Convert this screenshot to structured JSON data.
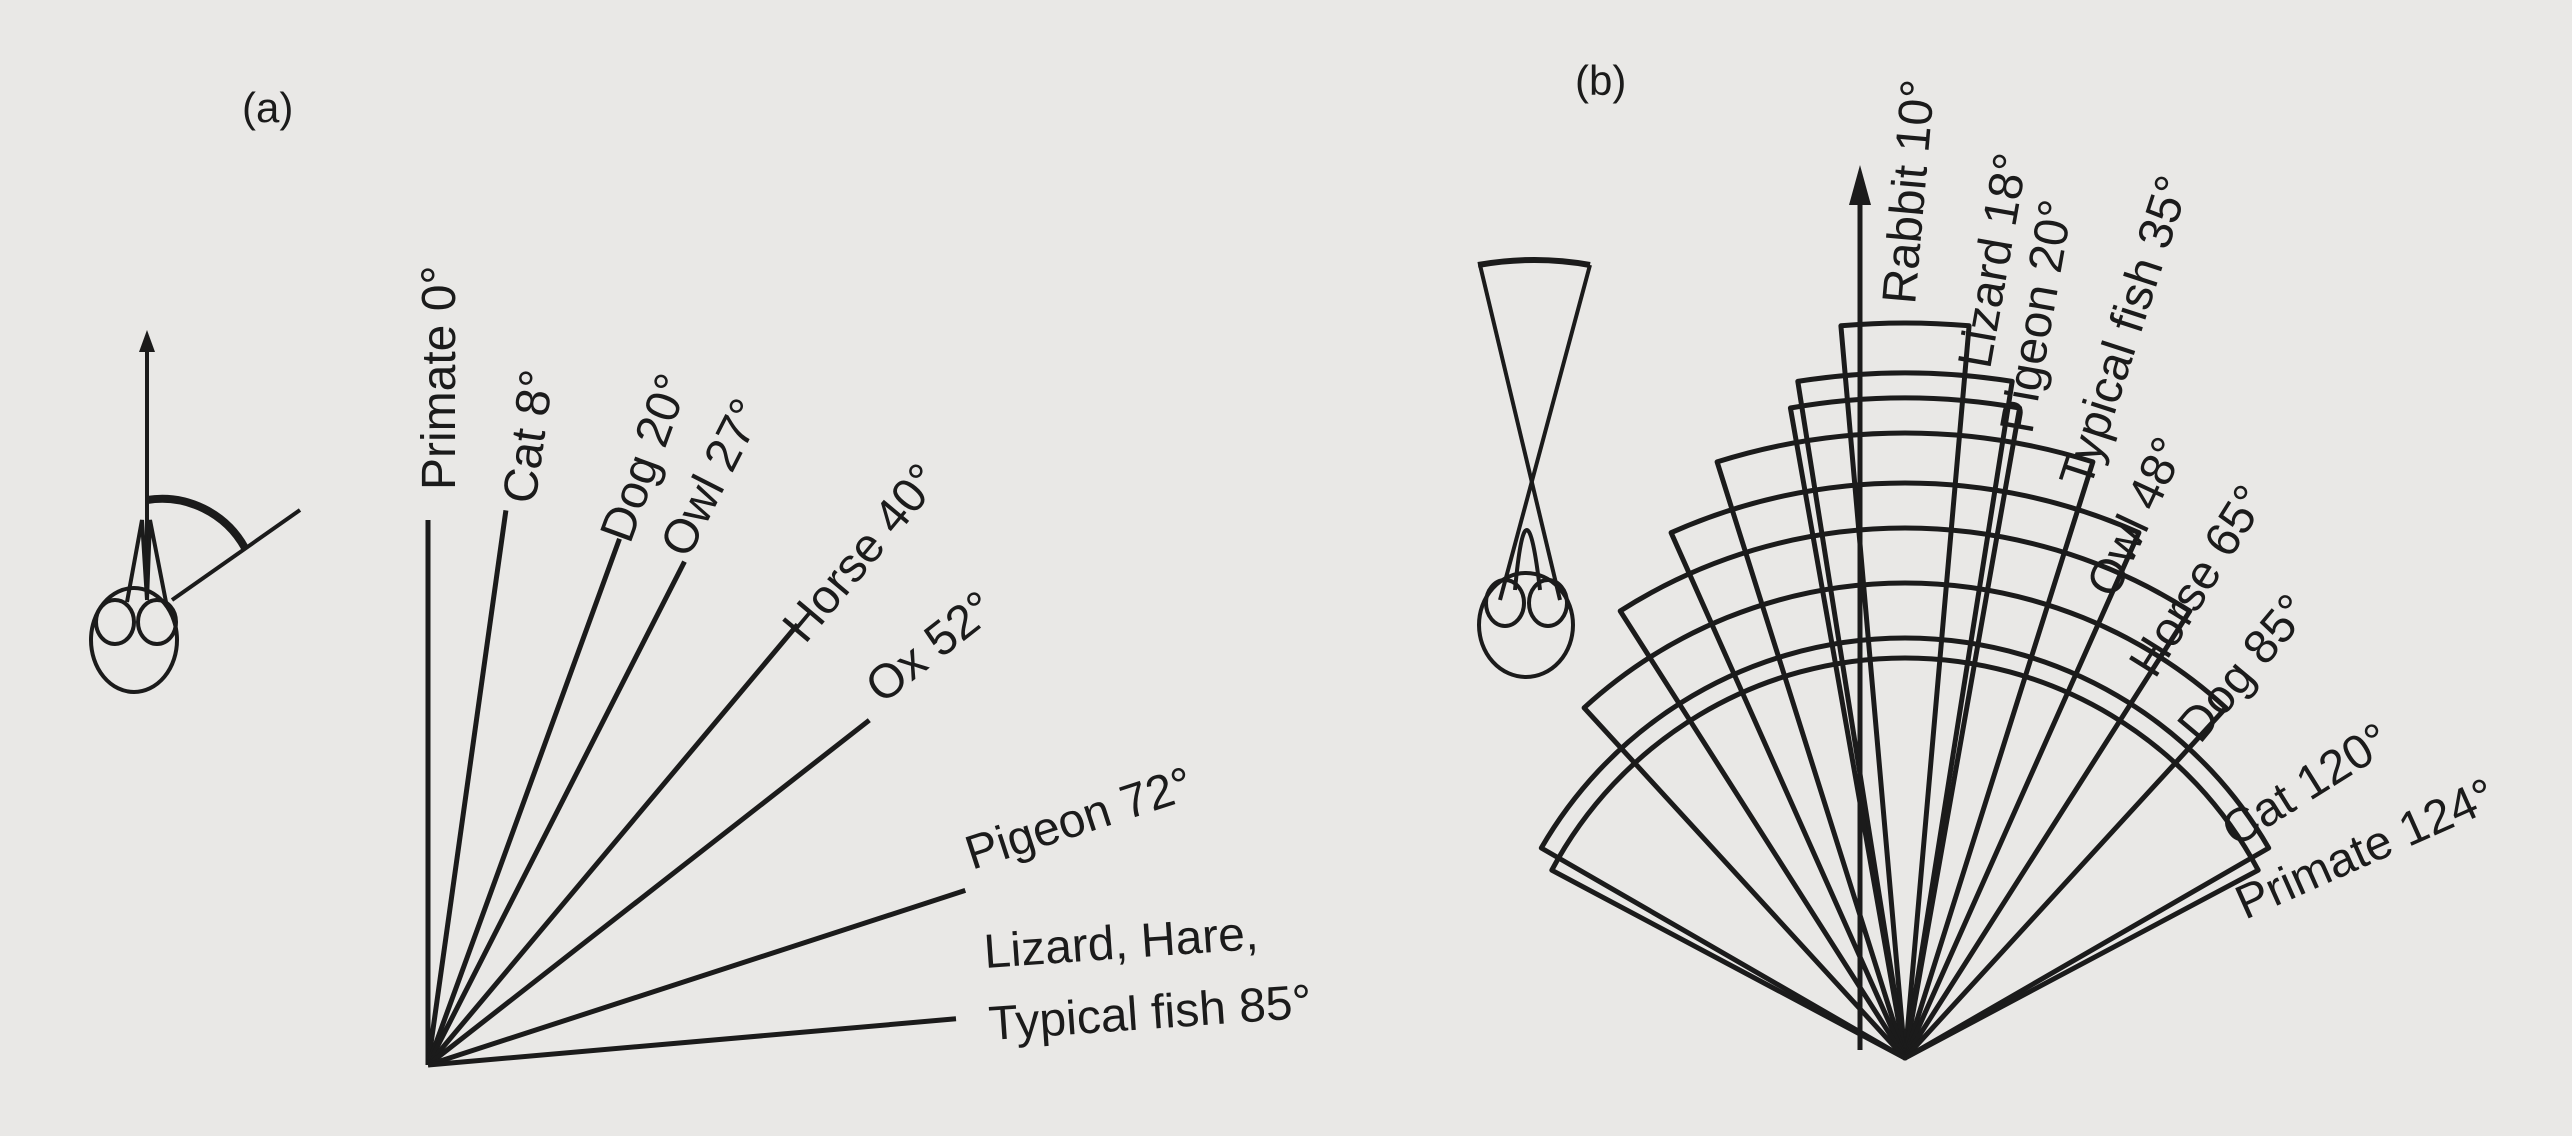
{
  "panel_a": {
    "caption": "(a)",
    "labels": [
      {
        "text": "Primate 0°",
        "angle_deg": 0
      },
      {
        "text": "Cat 8°",
        "angle_deg": 8
      },
      {
        "text": "Dog 20°",
        "angle_deg": 20
      },
      {
        "text": "Owl 27°",
        "angle_deg": 27
      },
      {
        "text": "Horse 40°",
        "angle_deg": 40
      },
      {
        "text": "Ox 52°",
        "angle_deg": 52
      },
      {
        "text": "Pigeon 72°",
        "angle_deg": 72
      }
    ],
    "last_label_line1": "Lizard, Hare,",
    "last_label_line2": "Typical fish 85°",
    "last_angle_deg": 85
  },
  "panel_b": {
    "caption": "(b)",
    "labels": [
      {
        "text": "Rabbit 10°",
        "field_deg": 10
      },
      {
        "text": "Lizard 18°",
        "field_deg": 18
      },
      {
        "text": "Pigeon 20°",
        "field_deg": 20
      },
      {
        "text": "Typical fish 35°",
        "field_deg": 35
      },
      {
        "text": "Owl 48°",
        "field_deg": 48
      },
      {
        "text": "Horse 65°",
        "field_deg": 65
      },
      {
        "text": "Dog 85°",
        "field_deg": 85
      },
      {
        "text": "Cat 120°",
        "field_deg": 120
      },
      {
        "text": "Primate 124°",
        "field_deg": 124
      }
    ]
  }
}
